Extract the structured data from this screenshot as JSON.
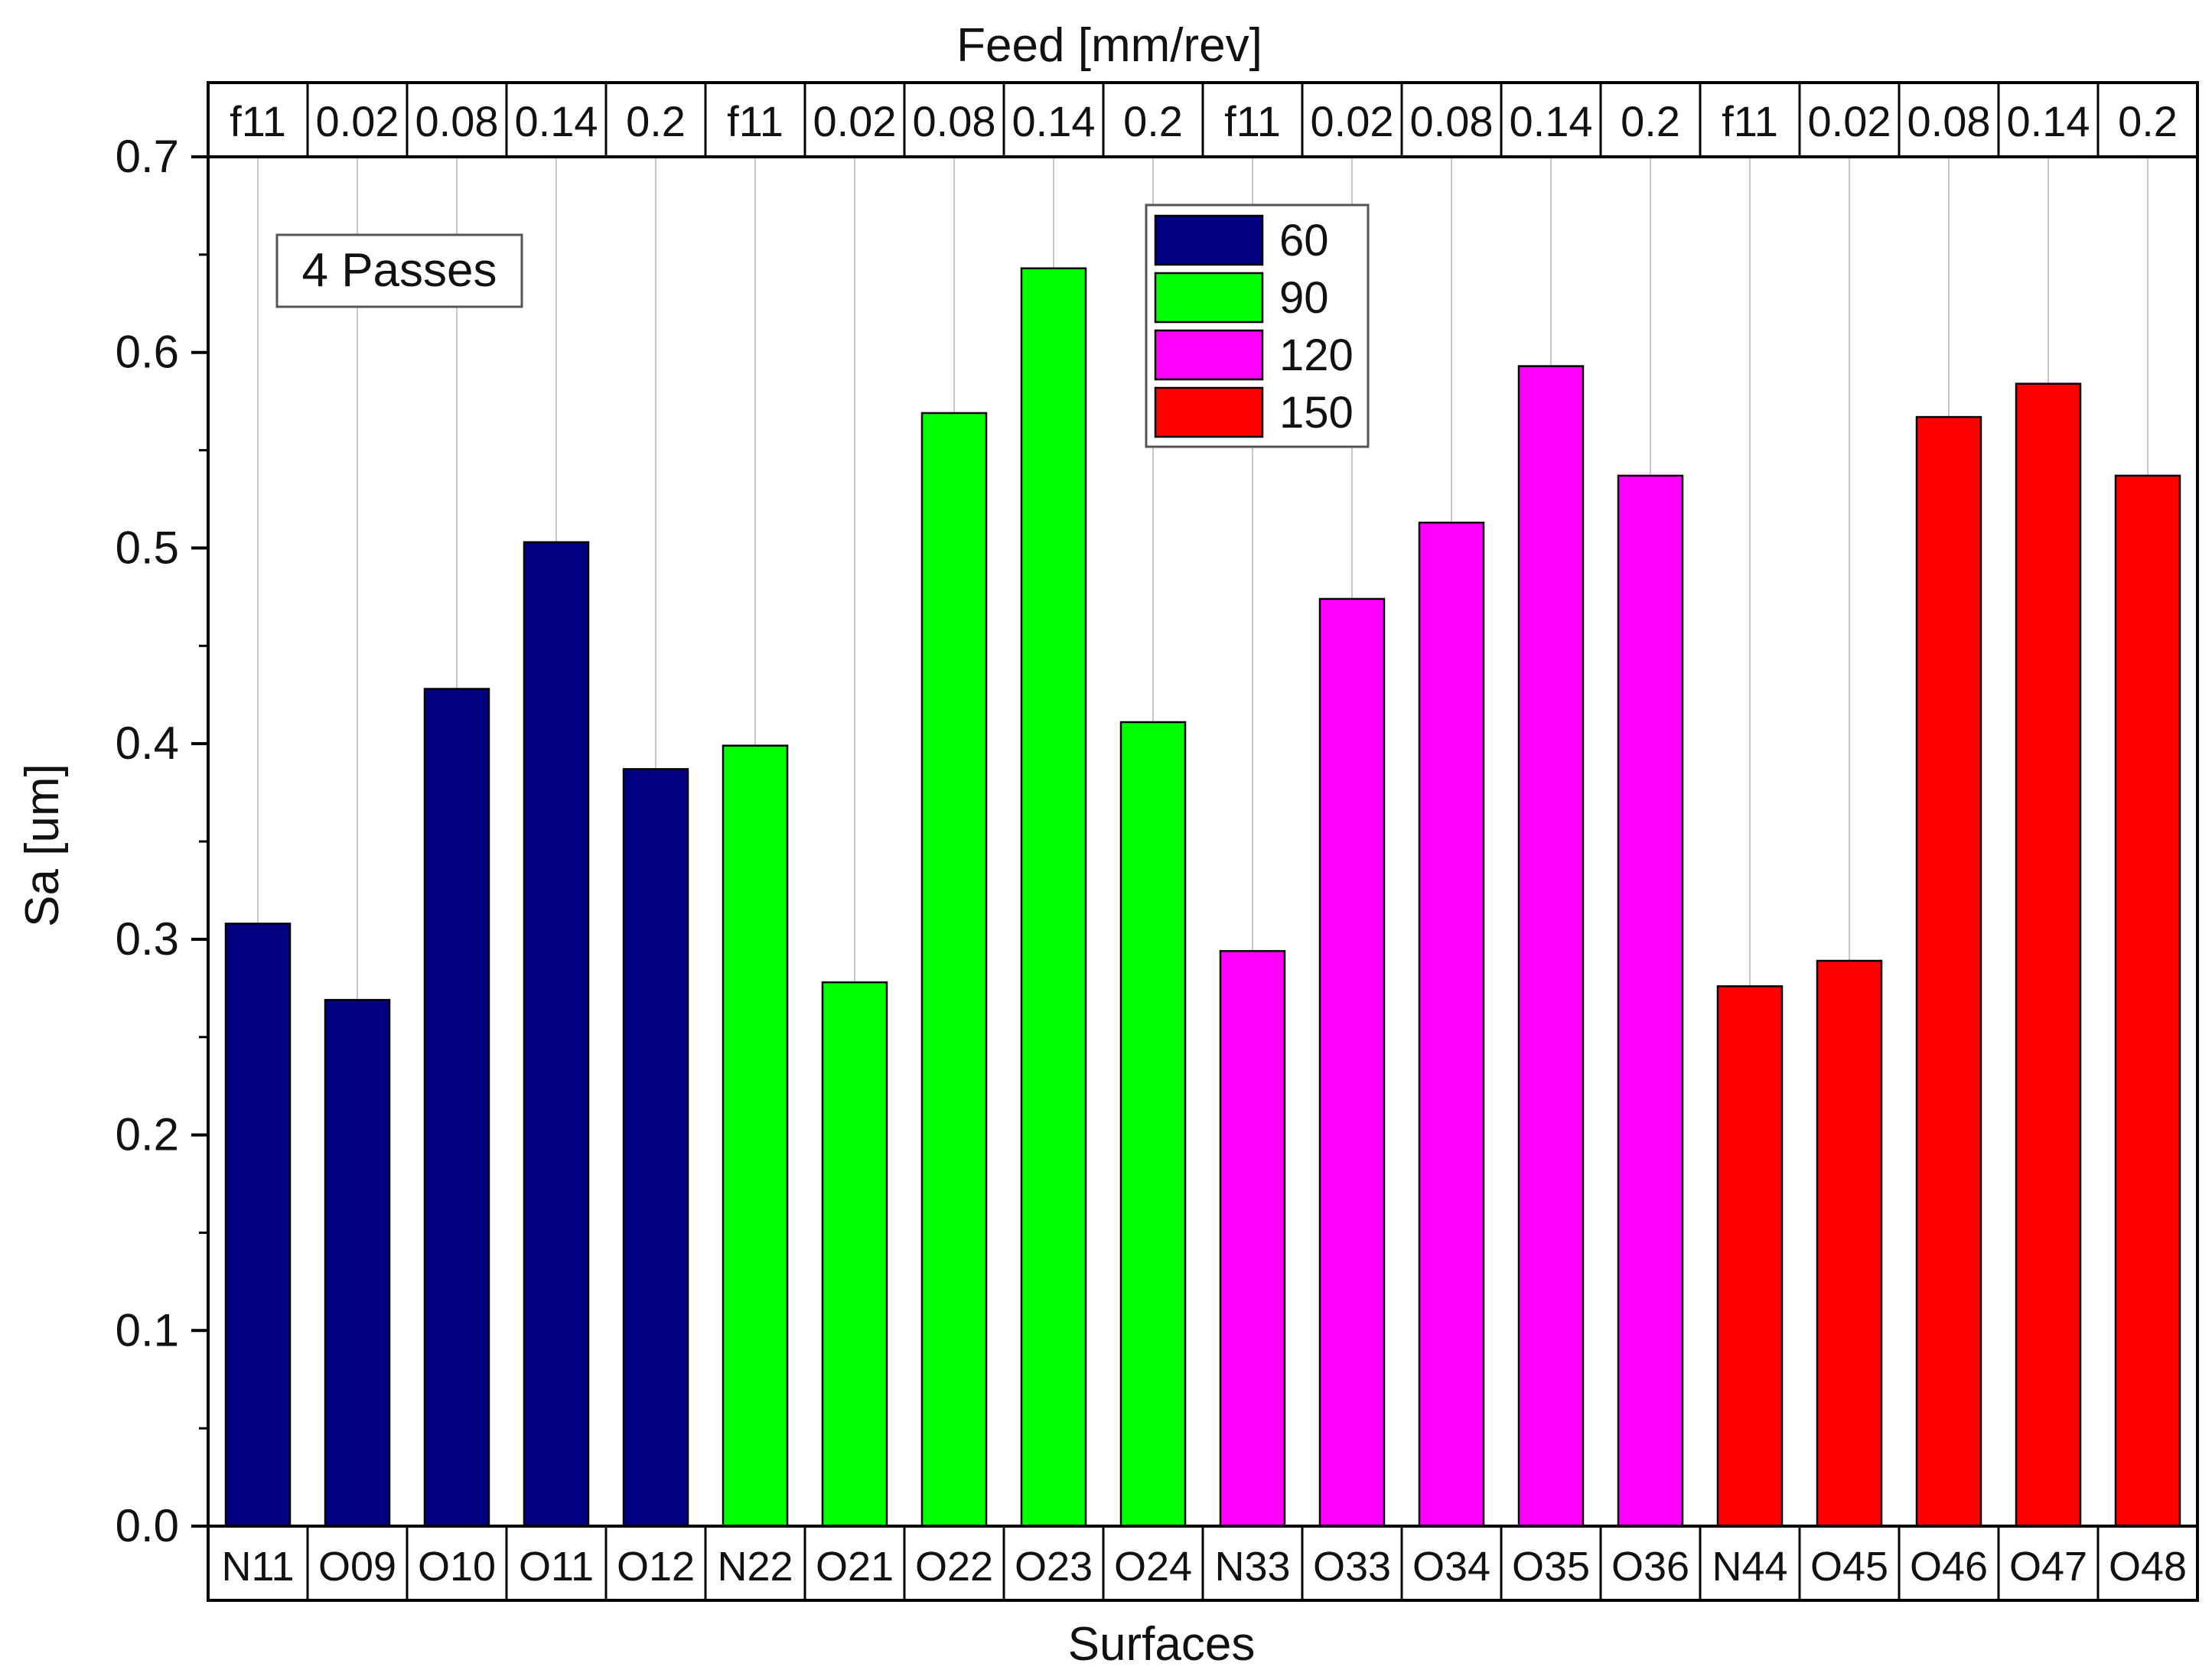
{
  "chart_data": {
    "type": "bar",
    "title": "",
    "top_axis_label": "Feed [mm/rev]",
    "xlabel": "Surfaces",
    "ylabel": "Sa [um]",
    "ylim": [
      0,
      0.7
    ],
    "yticks": [
      "0.0",
      "0.1",
      "0.2",
      "0.3",
      "0.4",
      "0.5",
      "0.6",
      "0.7"
    ],
    "annotation": "4 Passes",
    "grid": "vertical",
    "legend_position": "top-center",
    "categories": [
      "N11",
      "O09",
      "O10",
      "O11",
      "O12",
      "N22",
      "O21",
      "O22",
      "O23",
      "O24",
      "N33",
      "O33",
      "O34",
      "O35",
      "O36",
      "N44",
      "O45",
      "O46",
      "O47",
      "O48"
    ],
    "feed_labels": [
      "f11",
      "0.02",
      "0.08",
      "0.14",
      "0.2",
      "f11",
      "0.02",
      "0.08",
      "0.14",
      "0.2",
      "f11",
      "0.02",
      "0.08",
      "0.14",
      "0.2",
      "f11",
      "0.02",
      "0.08",
      "0.14",
      "0.2"
    ],
    "values": [
      0.308,
      0.269,
      0.428,
      0.503,
      0.387,
      0.399,
      0.278,
      0.569,
      0.643,
      0.411,
      0.294,
      0.474,
      0.513,
      0.593,
      0.537,
      0.276,
      0.289,
      0.567,
      0.584,
      0.537
    ],
    "groups": [
      {
        "name": "60",
        "color": "#000080",
        "start": 0,
        "count": 5
      },
      {
        "name": "90",
        "color": "#00ff00",
        "start": 5,
        "count": 5
      },
      {
        "name": "120",
        "color": "#ff00ff",
        "start": 10,
        "count": 5
      },
      {
        "name": "150",
        "color": "#ff0000",
        "start": 15,
        "count": 5
      }
    ]
  }
}
